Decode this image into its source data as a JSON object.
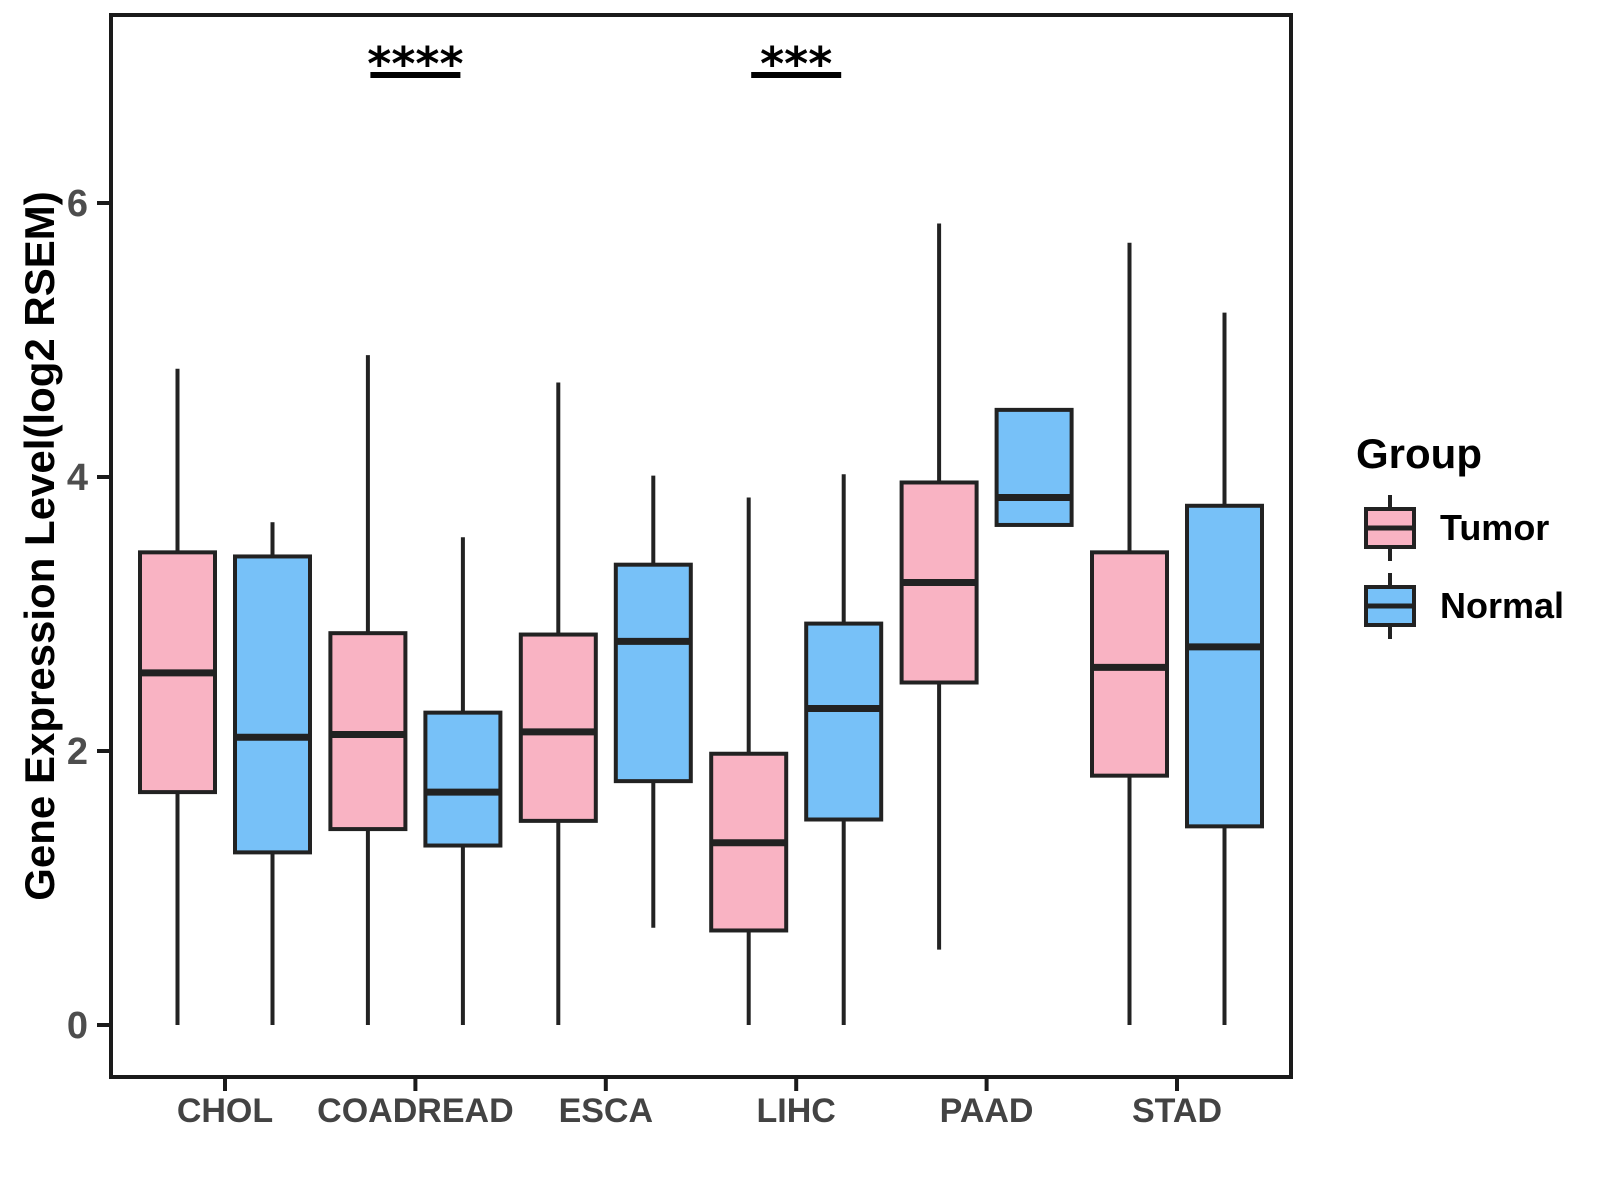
{
  "y_axis": {
    "title": "Gene Expression Level(log2 RSEM)",
    "tick_labels": [
      "0",
      "2",
      "4",
      "6"
    ]
  },
  "x_axis": {
    "categories": [
      "CHOL",
      "COADREAD",
      "ESCA",
      "LIHC",
      "PAAD",
      "STAD"
    ]
  },
  "legend": {
    "title": "Group",
    "entries": [
      {
        "label": "Tumor",
        "color": "#F9B3C3"
      },
      {
        "label": "Normal",
        "color": "#77C1F8"
      }
    ]
  },
  "style": {
    "box_stroke": "#222222",
    "axis_color": "#1a1a1a",
    "axis_text_color": "#4d4d4d",
    "tumor_fill": "#F9B3C3",
    "normal_fill": "#77C1F8",
    "significance_color": "#000000"
  },
  "chart_data": {
    "type": "boxplot",
    "title": "",
    "xlabel": "",
    "ylabel": "Gene Expression Level(log2 RSEM)",
    "categories": [
      "CHOL",
      "COADREAD",
      "ESCA",
      "LIHC",
      "PAAD",
      "STAD"
    ],
    "yticks": [
      0,
      2,
      4,
      6
    ],
    "ylim": [
      -0.4,
      7.4
    ],
    "grid": false,
    "legend_position": "right",
    "legend_title": "Group",
    "series": [
      {
        "name": "Tumor",
        "color": "#F9B3C3",
        "boxes": [
          {
            "min": 0.0,
            "q1": 1.7,
            "median": 2.57,
            "q3": 3.45,
            "max": 4.79
          },
          {
            "min": 0.0,
            "q1": 1.43,
            "median": 2.12,
            "q3": 2.86,
            "max": 4.89
          },
          {
            "min": 0.0,
            "q1": 1.49,
            "median": 2.14,
            "q3": 2.85,
            "max": 4.69
          },
          {
            "min": 0.0,
            "q1": 0.69,
            "median": 1.33,
            "q3": 1.98,
            "max": 3.85
          },
          {
            "min": 0.55,
            "q1": 2.5,
            "median": 3.23,
            "q3": 3.96,
            "max": 5.85
          },
          {
            "min": 0.0,
            "q1": 1.82,
            "median": 2.61,
            "q3": 3.45,
            "max": 5.71
          }
        ]
      },
      {
        "name": "Normal",
        "color": "#77C1F8",
        "boxes": [
          {
            "min": 0.0,
            "q1": 1.26,
            "median": 2.1,
            "q3": 3.42,
            "max": 3.67
          },
          {
            "min": 0.0,
            "q1": 1.31,
            "median": 1.7,
            "q3": 2.28,
            "max": 3.56
          },
          {
            "min": 0.71,
            "q1": 1.78,
            "median": 2.8,
            "q3": 3.36,
            "max": 4.01
          },
          {
            "min": 0.0,
            "q1": 1.5,
            "median": 2.31,
            "q3": 2.93,
            "max": 4.02
          },
          {
            "min": 3.65,
            "q1": 3.65,
            "median": 3.85,
            "q3": 4.49,
            "max": 4.49
          },
          {
            "min": 0.0,
            "q1": 1.45,
            "median": 2.76,
            "q3": 3.79,
            "max": 5.2
          }
        ]
      }
    ],
    "annotations": [
      {
        "category": "COADREAD",
        "label": "****"
      },
      {
        "category": "LIHC",
        "label": "***"
      }
    ]
  }
}
